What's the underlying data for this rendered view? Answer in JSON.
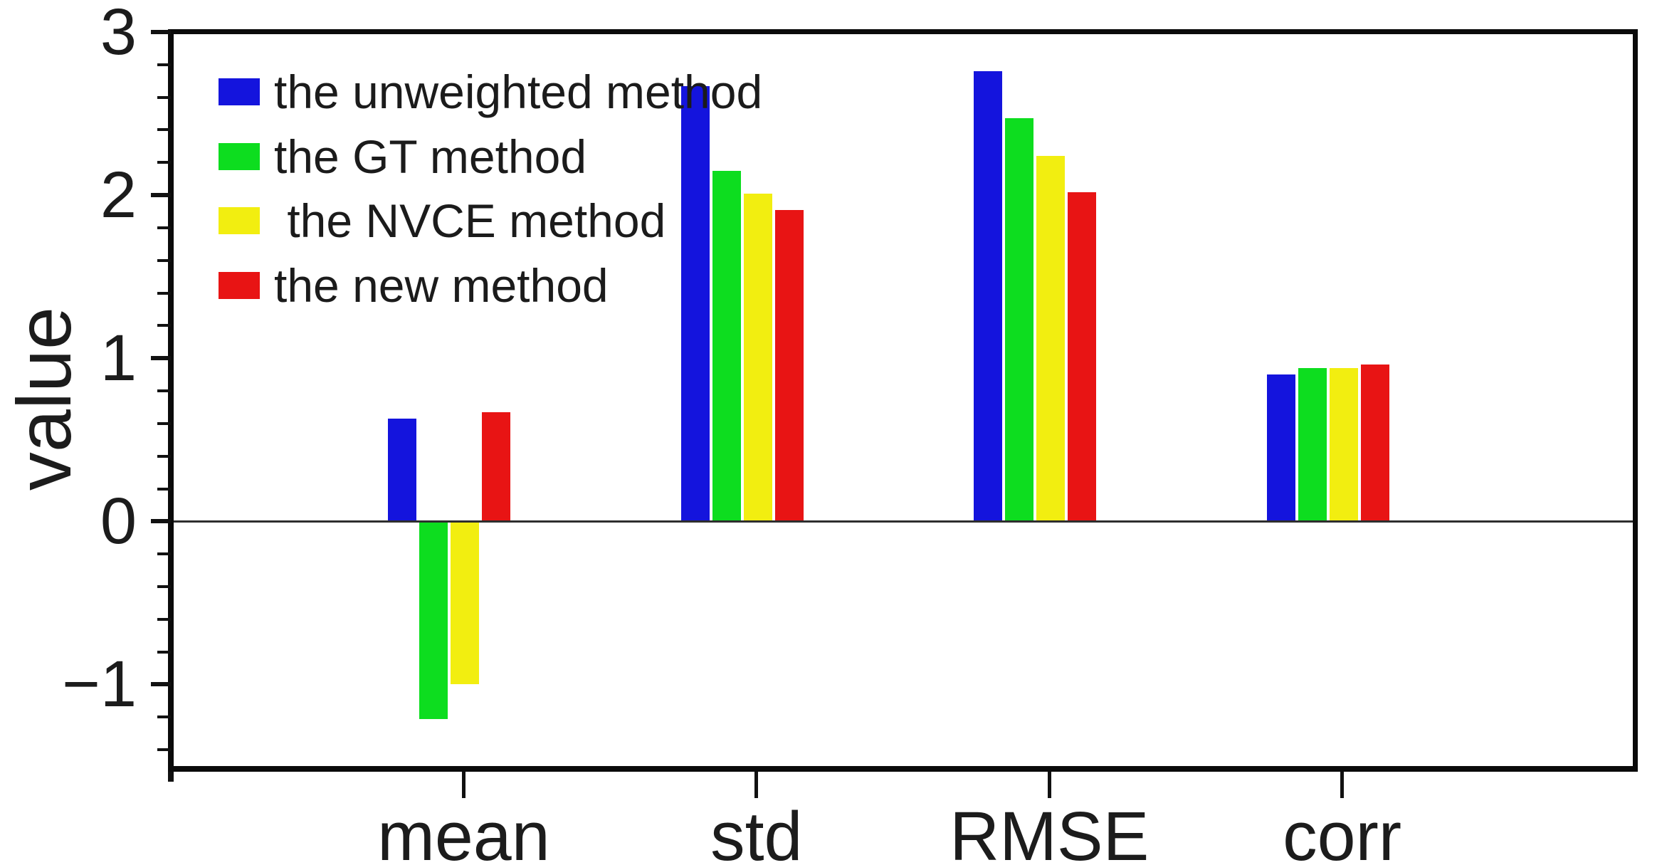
{
  "figure": {
    "background_color": "#ffffff",
    "plot_border_color": "#0a0a0a",
    "zero_line_color": "#2e2e2e"
  },
  "chart_data": {
    "type": "bar",
    "title": "",
    "xlabel": "",
    "ylabel": "value",
    "categories": [
      "mean",
      "std",
      "RMSE",
      "corr"
    ],
    "series": [
      {
        "name": "the unweighted method",
        "color": "#1414dd",
        "values": [
          0.63,
          2.67,
          2.76,
          0.9
        ]
      },
      {
        "name": "the GT method",
        "color": "#0ddd1f",
        "values": [
          -1.21,
          2.15,
          2.47,
          0.94
        ]
      },
      {
        "name": " the NVCE method",
        "color": "#f2ee10",
        "values": [
          -1.0,
          2.01,
          2.24,
          0.94
        ]
      },
      {
        "name": "the new method",
        "color": "#e81414",
        "values": [
          0.67,
          1.91,
          2.02,
          0.96
        ]
      }
    ],
    "ylim": [
      -1.5,
      3
    ],
    "yticks_major": [
      3,
      2,
      1,
      0,
      -1
    ],
    "ytick_labels": [
      "3",
      "2",
      "1",
      "0",
      "−1"
    ],
    "y_minor_tick_step": 0.2,
    "grid": false,
    "zero_line": true,
    "legend_position": "upper-left",
    "legend_frame": false
  }
}
